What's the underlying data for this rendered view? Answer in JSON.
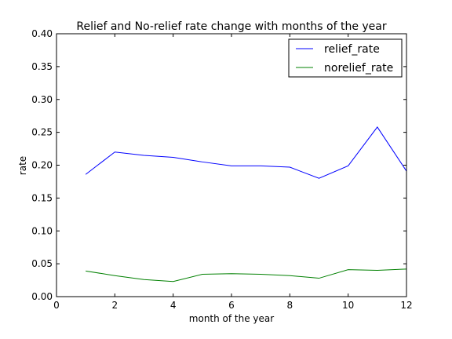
{
  "chart_data": {
    "type": "line",
    "title": "Relief and No-relief rate change with months of the year",
    "xlabel": "month of the year",
    "ylabel": "rate",
    "xlim": [
      0,
      12
    ],
    "ylim": [
      0,
      0.4
    ],
    "xticks": [
      "0",
      "2",
      "4",
      "6",
      "8",
      "10",
      "12"
    ],
    "yticks": [
      "0.00",
      "0.05",
      "0.10",
      "0.15",
      "0.20",
      "0.25",
      "0.30",
      "0.35",
      "0.40"
    ],
    "grid": false,
    "legend_position": "top-right",
    "x": [
      1,
      2,
      3,
      4,
      5,
      6,
      7,
      8,
      9,
      10,
      11,
      12
    ],
    "series": [
      {
        "name": "relief_rate",
        "color": "#0000ff",
        "values": [
          0.186,
          0.22,
          0.215,
          0.212,
          0.205,
          0.199,
          0.199,
          0.197,
          0.18,
          0.199,
          0.258,
          0.191
        ]
      },
      {
        "name": "norelief_rate",
        "color": "#008000",
        "values": [
          0.039,
          0.032,
          0.026,
          0.023,
          0.034,
          0.035,
          0.034,
          0.032,
          0.028,
          0.041,
          0.04,
          0.042
        ]
      }
    ]
  }
}
